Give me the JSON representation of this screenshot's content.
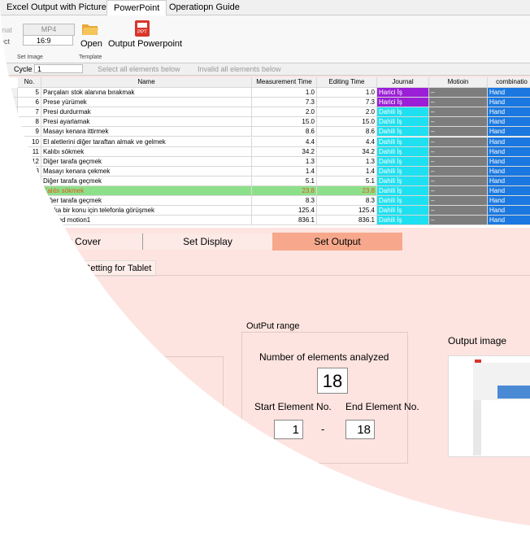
{
  "ribbon": {
    "tabs": [
      "Excel Output with Picture",
      "PowerPoint",
      "Operatiopn Guide"
    ],
    "format_label": "mat",
    "format_value": "MP4",
    "aspect_label": "ect",
    "aspect_value": "16:9",
    "group_set_image": "Set Image",
    "open": "Open",
    "group_template": "Template",
    "output": "Output Powerpoint"
  },
  "toolbar": {
    "cycle_label": "Cycle",
    "cycle_value": "1",
    "select_all": "Select all elements below",
    "invalid_all": "Invalid all elements below"
  },
  "table": {
    "columns": [
      "No.",
      "Name",
      "Measurement Time",
      "Editing Time",
      "Journal",
      "Motioin",
      "combinatio"
    ],
    "rows": [
      {
        "no": "5",
        "name": "Parçaları stok alanına bırakmak",
        "measurement": "1.0",
        "editing": "1.0",
        "journal": "Harici İş",
        "journal_color": "#9b1fd6",
        "motion": "–",
        "combination": "Hand",
        "highlight": false
      },
      {
        "no": "6",
        "name": "Prese yürümek",
        "measurement": "7.3",
        "editing": "7.3",
        "journal": "Harici İş",
        "journal_color": "#9b1fd6",
        "motion": "–",
        "combination": "Hand",
        "highlight": false
      },
      {
        "no": "7",
        "name": "Presi durdurmak",
        "measurement": "2.0",
        "editing": "2.0",
        "journal": "Dahili İş",
        "journal_color": "#1ee0f0",
        "motion": "–",
        "combination": "Hand",
        "highlight": false
      },
      {
        "no": "8",
        "name": "Presi ayarlamak",
        "measurement": "15.0",
        "editing": "15.0",
        "journal": "Dahili İş",
        "journal_color": "#1ee0f0",
        "motion": "–",
        "combination": "Hand",
        "highlight": false
      },
      {
        "no": "9",
        "name": "Masayı kenara ittirmek",
        "measurement": "8.6",
        "editing": "8.6",
        "journal": "Dahili İş",
        "journal_color": "#1ee0f0",
        "motion": "–",
        "combination": "Hand",
        "highlight": false
      },
      {
        "no": "10",
        "name": "El aletlerini diğer taraftan almak ve gelmek",
        "measurement": "4.4",
        "editing": "4.4",
        "journal": "Dahili İş",
        "journal_color": "#1ee0f0",
        "motion": "–",
        "combination": "Hand",
        "highlight": false
      },
      {
        "no": "11",
        "name": "Kalıbı sökmek",
        "measurement": "34.2",
        "editing": "34.2",
        "journal": "Dahili İş",
        "journal_color": "#1ee0f0",
        "motion": "–",
        "combination": "Hand",
        "highlight": false
      },
      {
        "no": "12",
        "name": "Diğer tarafa geçmek",
        "measurement": "1.3",
        "editing": "1.3",
        "journal": "Dahili İş",
        "journal_color": "#1ee0f0",
        "motion": "–",
        "combination": "Hand",
        "highlight": false
      },
      {
        "no": "13",
        "name": "Masayı kenara çekmek",
        "measurement": "1.4",
        "editing": "1.4",
        "journal": "Dahili İş",
        "journal_color": "#1ee0f0",
        "motion": "–",
        "combination": "Hand",
        "highlight": false
      },
      {
        "no": "14",
        "name": "Diğer tarafa geçmek",
        "measurement": "5.1",
        "editing": "5.1",
        "journal": "Dahili İş",
        "journal_color": "#1ee0f0",
        "motion": "–",
        "combination": "Hand",
        "highlight": false
      },
      {
        "no": "5",
        "name": "Kalıbı sökmek",
        "measurement": "23.8",
        "editing": "23.8",
        "journal": "Dahili İş",
        "journal_color": "#1ee0f0",
        "motion": "–",
        "combination": "Hand",
        "highlight": true
      },
      {
        "no": null,
        "name": "Diğer tarafa geçmek",
        "measurement": "8.3",
        "editing": "8.3",
        "journal": "Dahili İş",
        "journal_color": "#1ee0f0",
        "motion": "–",
        "combination": "Hand",
        "highlight": false
      },
      {
        "no": null,
        "name": "Başka bir konu için telefonla görüşmek",
        "measurement": "125.4",
        "editing": "125.4",
        "journal": "Dahili İş",
        "journal_color": "#1ee0f0",
        "motion": "–",
        "combination": "Hand",
        "highlight": false
      },
      {
        "no": null,
        "name": "nalyzed motion1",
        "measurement": "836.1",
        "editing": "836.1",
        "journal": "Dahili İş",
        "journal_color": "#1ee0f0",
        "motion": "–",
        "combination": "Hand",
        "highlight": false
      }
    ]
  },
  "tabs": [
    "Set Cover",
    "Set Display",
    "Set Output"
  ],
  "subtabs": [
    "rs",
    "Setting for Tablet"
  ],
  "output_range": {
    "title": "OutPut range",
    "count_label": "Number of elements analyzed",
    "count": "18",
    "start_label": "Start Element No.",
    "start": "1",
    "separator": "-",
    "end_label": "End Element No.",
    "end": "18"
  },
  "output_image": {
    "label": "Output image"
  }
}
